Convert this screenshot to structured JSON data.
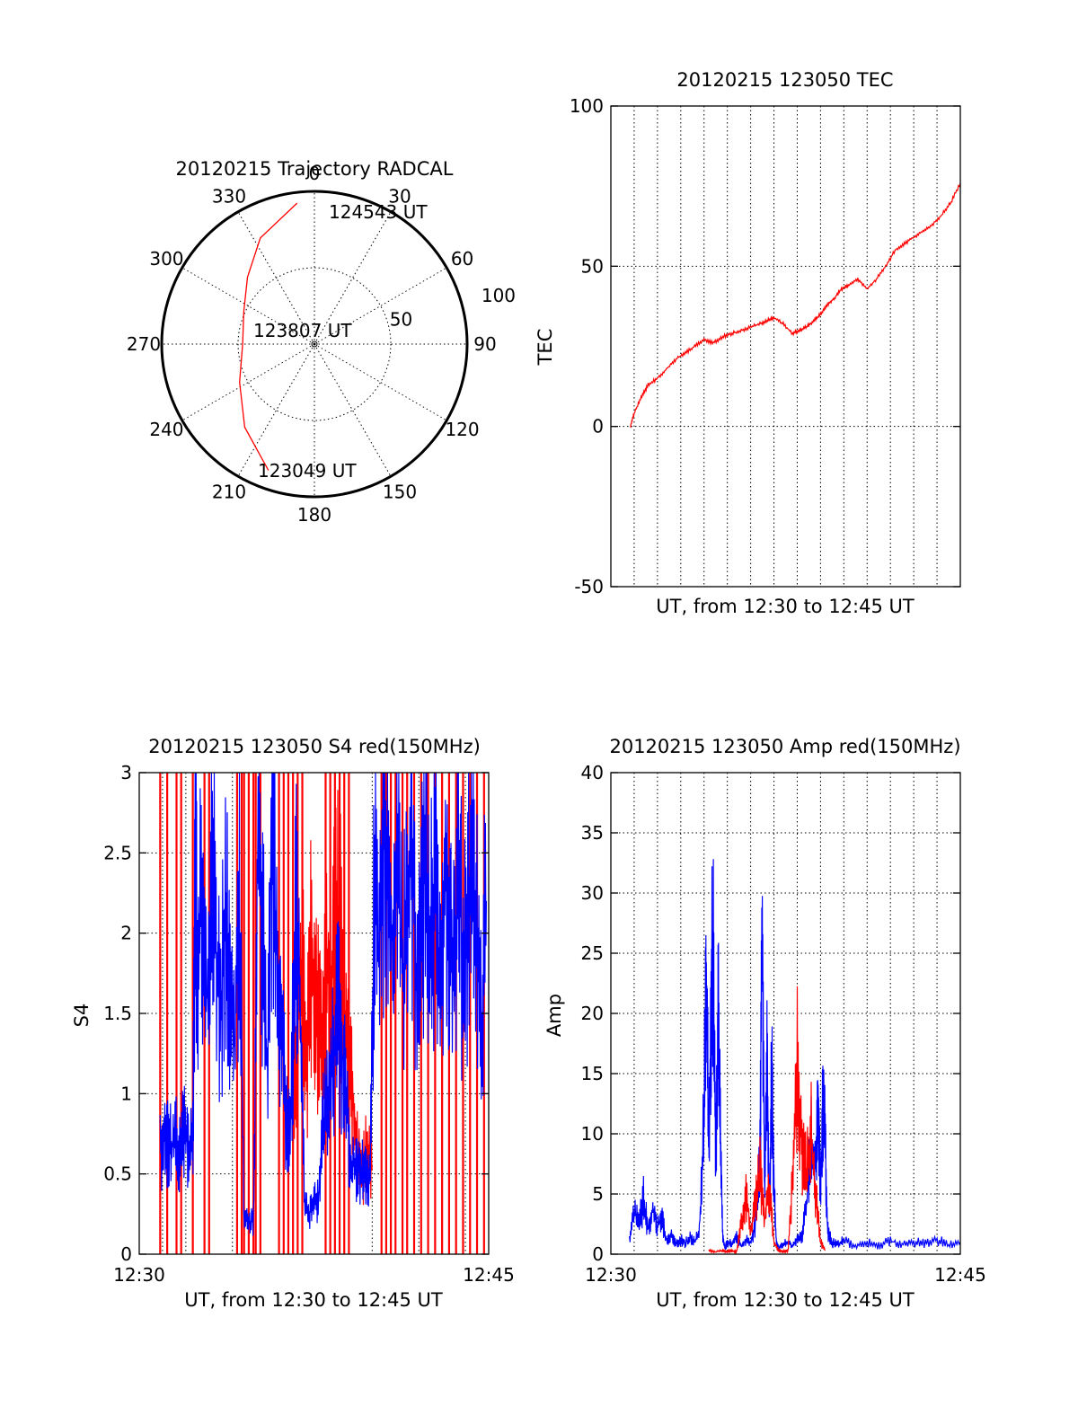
{
  "chart_data": [
    {
      "id": "trajectory",
      "type": "polar-trajectory",
      "title": "20120215 Trajectory RADCAL",
      "azimuth_labels": [
        "0",
        "30",
        "60",
        "90",
        "120",
        "150",
        "180",
        "210",
        "240",
        "270",
        "300",
        "330"
      ],
      "radial_labels": [
        "50",
        "100"
      ],
      "rmax": 100,
      "grid": true,
      "start_label": "123049 UT",
      "mid_label": "123807 UT",
      "end_label": "124543 UT",
      "track": {
        "color": "#ff0000",
        "points": [
          [
            200,
            88
          ],
          [
            220,
            71
          ],
          [
            243,
            55
          ],
          [
            270,
            47
          ],
          [
            295,
            51
          ],
          [
            315,
            62
          ],
          [
            333,
            78
          ],
          [
            353,
            93
          ]
        ]
      }
    },
    {
      "id": "tec",
      "type": "line",
      "title": "20120215 123050 TEC",
      "xlabel": "UT, from 12:30 to 12:45 UT",
      "ylabel": "TEC",
      "xlim": [
        0,
        15
      ],
      "ylim": [
        -50,
        100
      ],
      "yticks": [
        "100",
        "50",
        "0",
        "-50"
      ],
      "xticks": [],
      "grid": true,
      "series": [
        {
          "color": "#ff0000",
          "x": [
            0.83,
            1.0,
            1.3,
            1.6,
            2.0,
            2.4,
            2.8,
            3.2,
            3.6,
            4.0,
            4.4,
            4.8,
            5.2,
            5.6,
            6.0,
            6.4,
            6.7,
            7.0,
            7.4,
            7.8,
            8.1,
            8.4,
            8.7,
            9.0,
            9.3,
            9.6,
            9.9,
            10.2,
            10.6,
            11.0,
            11.4,
            11.8,
            12.2,
            12.6,
            13.0,
            13.4,
            13.8,
            14.2,
            14.6,
            15.0
          ],
          "values": [
            0,
            4,
            9,
            13,
            15,
            18,
            21,
            23,
            25,
            27,
            26,
            28,
            29,
            30,
            31,
            32,
            33,
            34,
            32,
            29,
            30,
            31,
            33,
            35,
            38,
            40,
            43,
            44,
            46,
            43,
            46,
            50,
            55,
            57,
            59,
            61,
            63,
            66,
            70,
            76
          ]
        }
      ]
    },
    {
      "id": "s4",
      "type": "line",
      "title": "20120215 123050 S4 red(150MHz)",
      "xlabel": "UT, from 12:30 to 12:45 UT",
      "ylabel": "S4",
      "xlim": [
        0,
        15
      ],
      "ylim": [
        0,
        3
      ],
      "yticks": [
        "3",
        "2.5",
        "2",
        "1.5",
        "1",
        "0.5",
        "0"
      ],
      "xticks": [
        "12:30",
        "12:45"
      ],
      "grid": true,
      "series": [
        {
          "color": "#ff0000",
          "kind": "spikes",
          "x": [
            0.9,
            1.2,
            1.6,
            1.8,
            2.3,
            2.8,
            3.0,
            4.2,
            4.4,
            4.5,
            4.7,
            4.9,
            5.0,
            5.2,
            6.0,
            6.2,
            6.4,
            6.6,
            6.8,
            7.0,
            8.0,
            8.2,
            8.4,
            8.6,
            8.8,
            9.0,
            10.4,
            10.6,
            10.8,
            11.0,
            11.3,
            11.5,
            11.8,
            12.1,
            12.4,
            12.7,
            13.0,
            13.3,
            13.6,
            13.9,
            14.2,
            14.5,
            14.8
          ],
          "values": [
            3,
            3,
            3,
            3,
            3,
            3,
            3,
            3,
            3,
            3,
            3,
            3,
            3,
            3,
            3,
            3,
            3,
            3,
            3,
            3,
            3,
            3,
            3,
            3,
            3,
            3,
            3,
            3,
            3,
            3,
            3,
            3,
            3,
            3,
            3,
            3,
            3,
            3,
            3,
            3,
            3,
            3,
            3
          ]
        },
        {
          "color": "#ff0000",
          "kind": "line",
          "x": [
            6.6,
            6.8,
            7.0,
            7.2,
            7.4,
            7.6,
            7.8,
            8.0,
            8.2,
            8.4,
            8.6,
            8.8,
            9.0,
            9.2,
            9.4,
            9.6,
            9.8,
            10.0
          ],
          "values": [
            0.9,
            1.4,
            1.7,
            1.2,
            2.0,
            1.5,
            1.3,
            1.8,
            1.6,
            1.9,
            2.1,
            1.4,
            1.2,
            0.9,
            0.6,
            0.5,
            0.7,
            0.55
          ]
        },
        {
          "color": "#0000ff",
          "kind": "line",
          "x": [
            0.9,
            1.1,
            1.3,
            1.5,
            1.7,
            1.9,
            2.1,
            2.3,
            2.4,
            2.5,
            2.7,
            2.9,
            3.1,
            3.3,
            3.5,
            3.7,
            3.9,
            4.1,
            4.3,
            4.5,
            4.7,
            4.9,
            5.1,
            5.3,
            5.5,
            5.7,
            5.9,
            6.1,
            6.3,
            6.5,
            6.7,
            6.9,
            7.1,
            7.3,
            7.5,
            7.7,
            7.9,
            8.1,
            8.3,
            8.5,
            8.7,
            8.9,
            9.1,
            9.3,
            9.5,
            9.7,
            9.9,
            10.1,
            10.3,
            10.5,
            10.7,
            10.9,
            11.1,
            11.3,
            11.5,
            11.7,
            11.9,
            12.1,
            12.3,
            12.5,
            12.7,
            12.9,
            13.1,
            13.3,
            13.5,
            13.7,
            13.9,
            14.1,
            14.3,
            14.5,
            14.7,
            14.9
          ],
          "values": [
            0.7,
            0.75,
            0.65,
            0.72,
            0.68,
            0.74,
            0.7,
            0.72,
            2.5,
            1.8,
            2.2,
            1.6,
            2.4,
            1.9,
            1.5,
            2.1,
            1.7,
            1.3,
            2.4,
            0.2,
            0.21,
            0.2,
            2.6,
            2.0,
            1.1,
            2.8,
            1.9,
            1.4,
            0.85,
            0.7,
            2.2,
            1.6,
            0.3,
            0.25,
            0.3,
            0.35,
            0.8,
            1.0,
            1.2,
            1.5,
            1.3,
            0.9,
            0.6,
            0.5,
            0.55,
            0.5,
            0.45,
            2.4,
            1.8,
            2.6,
            2.1,
            1.9,
            2.5,
            1.7,
            2.2,
            2.7,
            1.8,
            2.0,
            2.6,
            1.9,
            2.3,
            1.6,
            2.4,
            2.0,
            1.8,
            2.5,
            1.7,
            2.1,
            2.6,
            1.9,
            1.5,
            2.2
          ]
        }
      ]
    },
    {
      "id": "amp",
      "type": "line",
      "title": "20120215 123050 Amp red(150MHz)",
      "xlabel": "UT, from 12:30 to 12:45 UT",
      "ylabel": "Amp",
      "xlim": [
        0,
        15
      ],
      "ylim": [
        0,
        40
      ],
      "yticks": [
        "40",
        "35",
        "30",
        "25",
        "20",
        "15",
        "10",
        "5",
        "0"
      ],
      "xticks": [
        "12:30",
        "12:45"
      ],
      "grid": true,
      "series": [
        {
          "color": "#0000ff",
          "kind": "line",
          "x": [
            0.8,
            1.0,
            1.2,
            1.4,
            1.6,
            1.8,
            2.0,
            2.2,
            2.4,
            2.6,
            2.8,
            3.0,
            3.2,
            3.4,
            3.6,
            3.8,
            4.0,
            4.1,
            4.2,
            4.3,
            4.4,
            4.5,
            4.6,
            4.7,
            4.8,
            4.9,
            5.0,
            5.2,
            5.4,
            5.6,
            5.8,
            6.0,
            6.2,
            6.4,
            6.5,
            6.6,
            6.7,
            6.8,
            6.9,
            7.0,
            7.1,
            7.2,
            7.4,
            7.6,
            7.8,
            8.0,
            8.2,
            8.4,
            8.6,
            8.8,
            8.9,
            9.0,
            9.1,
            9.2,
            9.3,
            9.4,
            9.5,
            9.6,
            9.8,
            10.0,
            10.5,
            11.0,
            11.5,
            12.0,
            12.5,
            13.0,
            13.5,
            14.0,
            14.5,
            15.0
          ],
          "values": [
            1.5,
            3.5,
            2.5,
            4.5,
            2.0,
            3.8,
            2.2,
            3.0,
            1.0,
            1.5,
            0.8,
            1.2,
            0.9,
            1.5,
            1.0,
            1.8,
            12,
            24,
            9,
            20,
            26,
            6,
            22,
            10,
            1.5,
            0.5,
            1.0,
            0.8,
            1.5,
            0.7,
            1.2,
            0.9,
            2.5,
            8,
            28,
            5,
            18,
            3,
            15,
            6,
            1,
            0.5,
            0.8,
            1.0,
            0.6,
            1.2,
            1.5,
            4,
            10,
            7,
            12,
            5,
            13,
            9,
            2,
            1.5,
            0.8,
            1.0,
            0.8,
            1.2,
            0.6,
            1.0,
            0.7,
            1.1,
            0.8,
            1.0,
            0.9,
            1.2,
            0.8,
            1.0
          ]
        },
        {
          "color": "#ff0000",
          "kind": "line",
          "x": [
            4.2,
            4.5,
            4.8,
            5.0,
            5.2,
            5.4,
            5.6,
            5.8,
            6.0,
            6.2,
            6.4,
            6.6,
            6.8,
            7.0,
            7.2,
            7.4,
            7.6,
            7.8,
            8.0,
            8.2,
            8.4,
            8.6,
            8.8,
            9.0,
            9.2
          ],
          "values": [
            0.3,
            0.2,
            0.3,
            0.2,
            0.3,
            0.2,
            2.5,
            5.0,
            2.0,
            4.0,
            7.0,
            3.0,
            5.5,
            1.0,
            0.3,
            0.2,
            0.3,
            6.0,
            16.0,
            9.0,
            7.0,
            10.0,
            5.0,
            1.0,
            0.3
          ]
        }
      ]
    }
  ]
}
